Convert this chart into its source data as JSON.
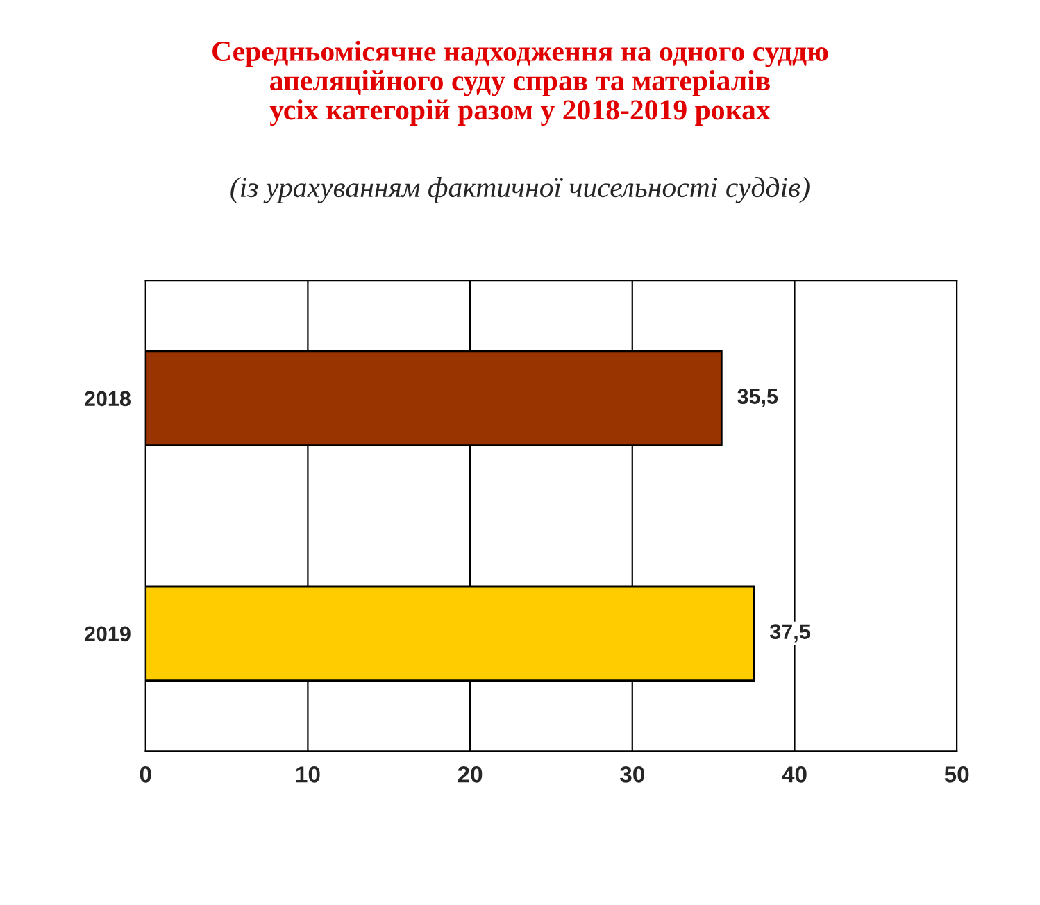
{
  "chart_data": {
    "type": "bar",
    "orientation": "horizontal",
    "title": "Середньомісячне надходження на одного суддю\nапеляційного суду справ та матеріалів\nусіх категорій разом у 2018-2019 роках",
    "subtitle": "(із урахуванням фактичної чисельності суддів)",
    "categories": [
      "2018",
      "2019"
    ],
    "values": [
      35.5,
      37.5
    ],
    "value_labels": [
      "35,5",
      "37,5"
    ],
    "colors": [
      "#993300",
      "#ffcc00"
    ],
    "xlim": [
      0,
      50
    ],
    "xticks": [
      0,
      10,
      20,
      30,
      40,
      50
    ],
    "grid": "x"
  }
}
